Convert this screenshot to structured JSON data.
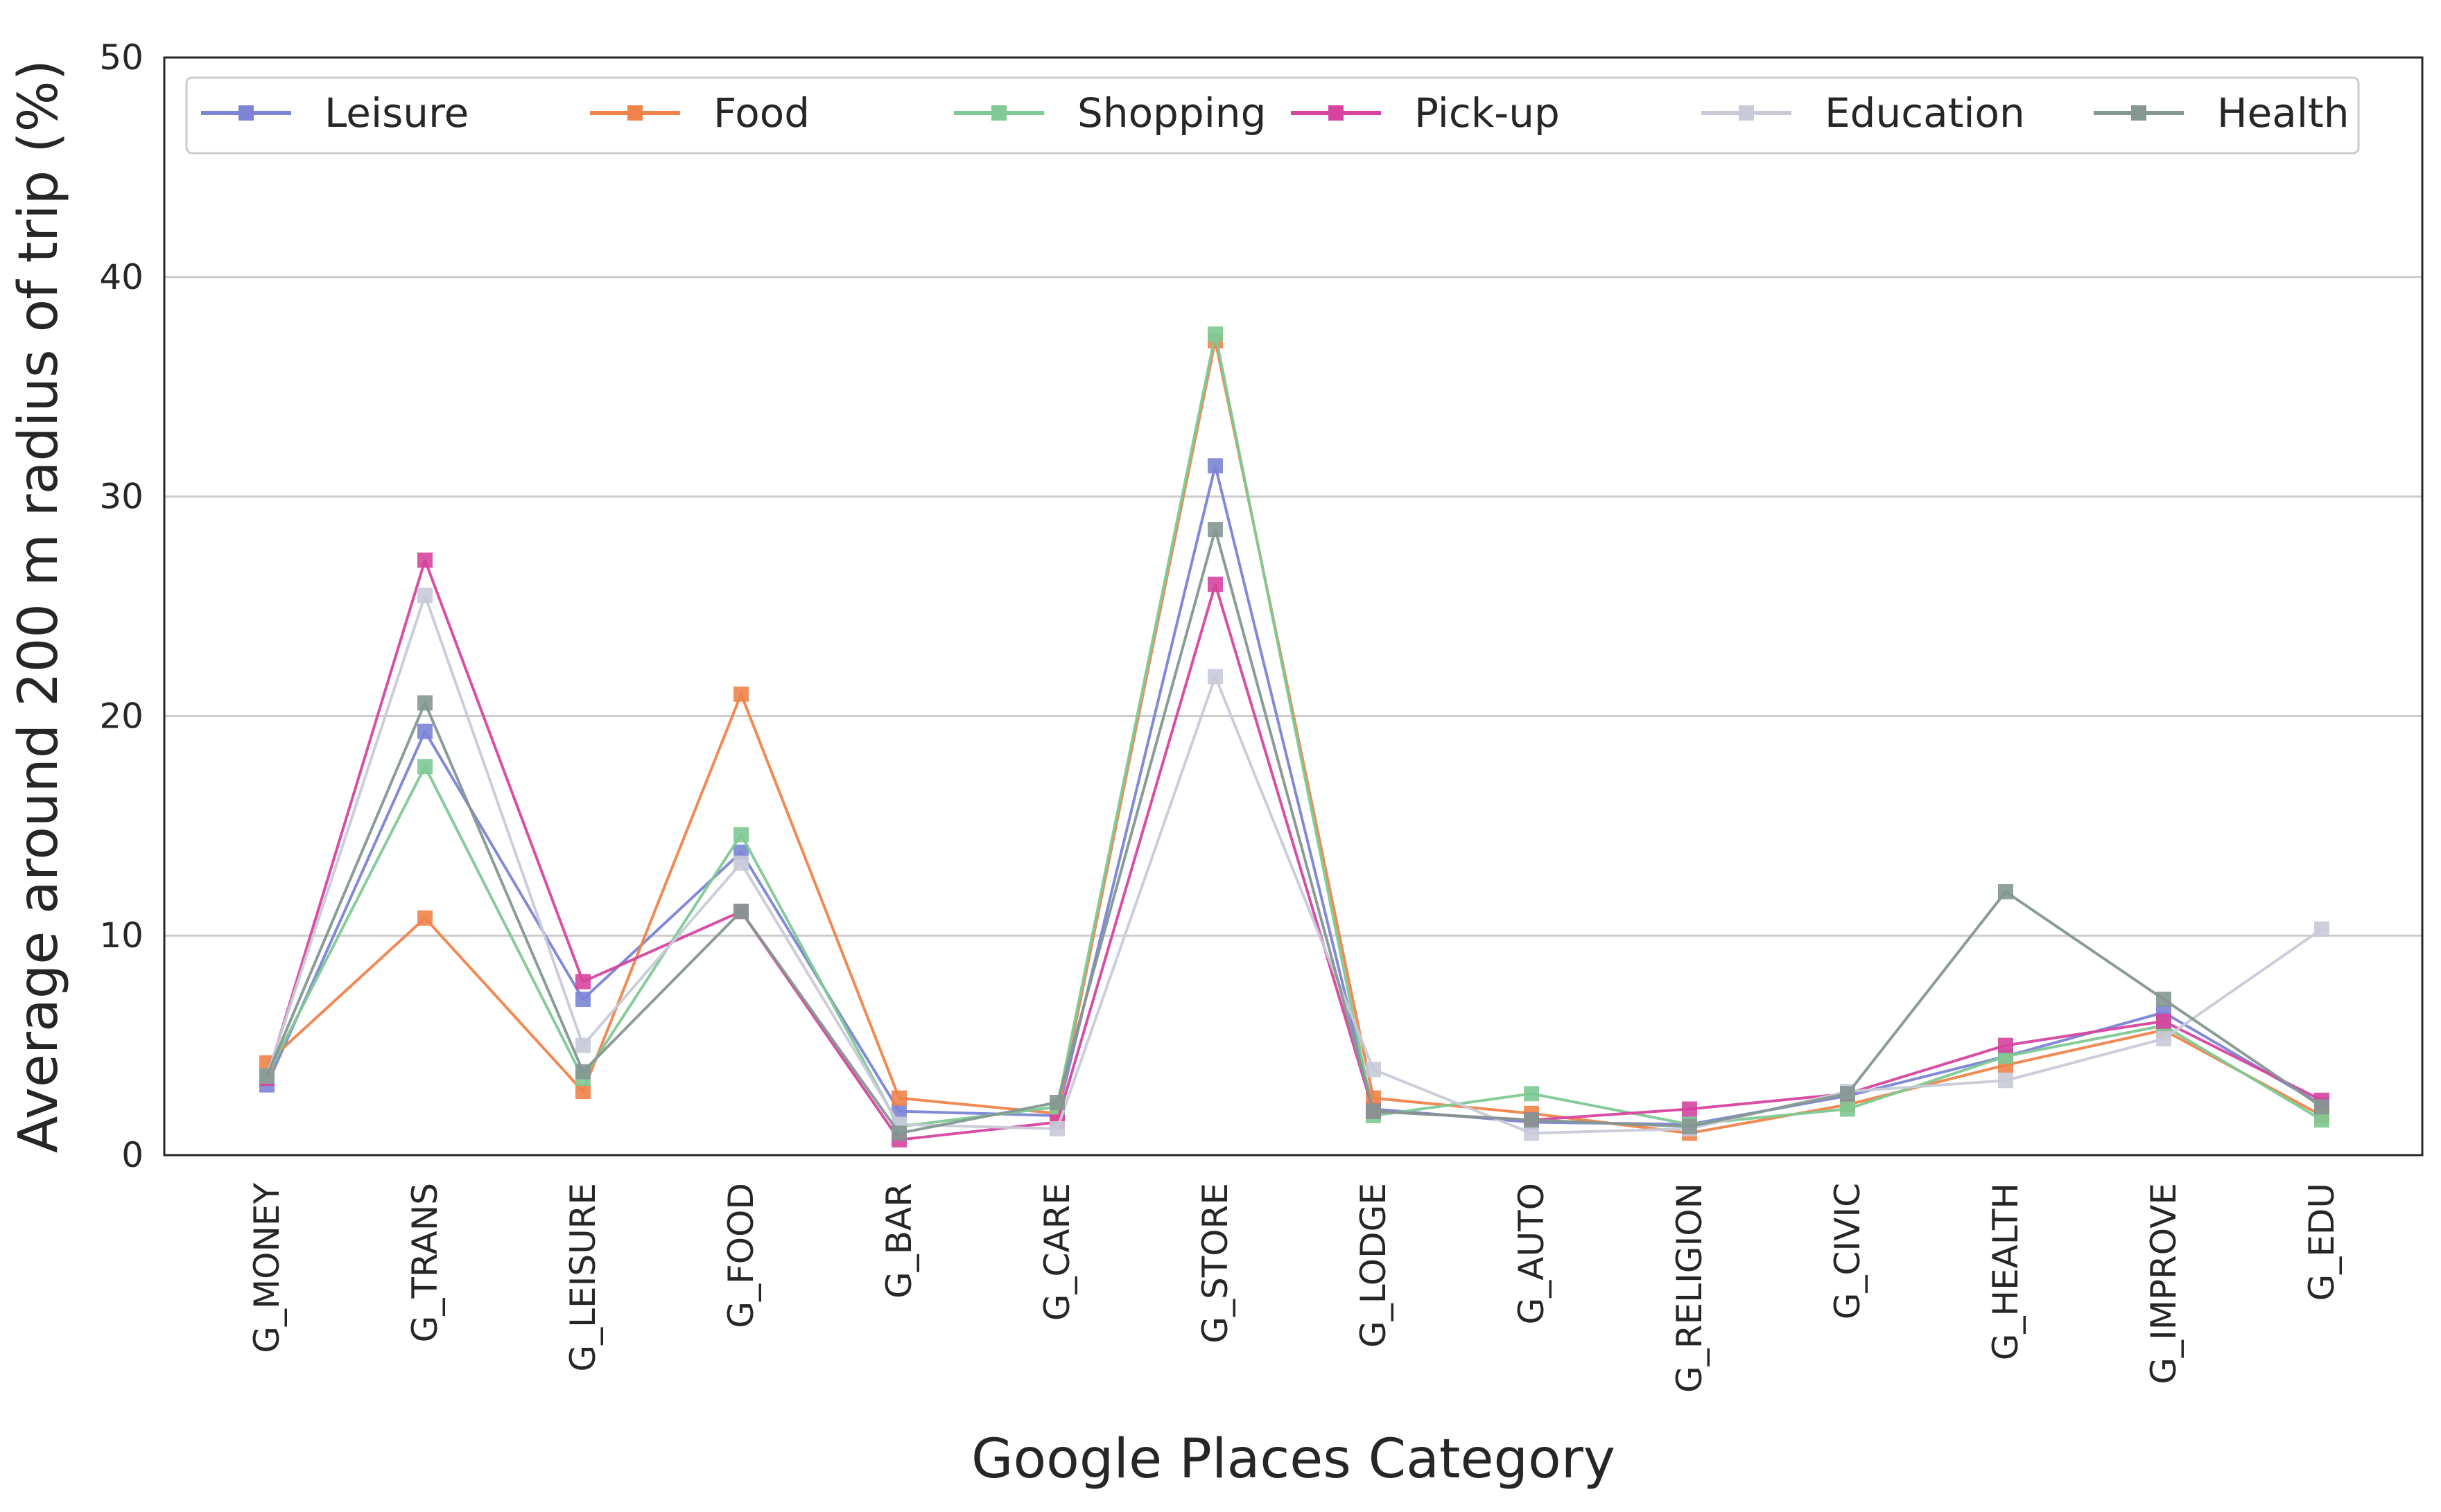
{
  "chart_data": {
    "type": "line",
    "xlabel": "Google Places Category",
    "ylabel": "Average around 200 m radius of trip (%)",
    "ylim": [
      0,
      50
    ],
    "yticks": [
      0,
      10,
      20,
      30,
      40,
      50
    ],
    "grid": "horizontal",
    "legend_position": "top",
    "categories": [
      "G_MONEY",
      "G_TRANS",
      "G_LEISURE",
      "G_FOOD",
      "G_BAR",
      "G_CARE",
      "G_STORE",
      "G_LODGE",
      "G_AUTO",
      "G_RELIGION",
      "G_CIVIC",
      "G_HEALTH",
      "G_IMPROVE",
      "G_EDU"
    ],
    "series": [
      {
        "name": "Leisure",
        "color": "#7b84d6",
        "values": [
          3.2,
          19.3,
          7.1,
          13.8,
          2.0,
          1.8,
          31.4,
          2.1,
          1.5,
          1.4,
          2.7,
          4.5,
          6.5,
          2.3
        ]
      },
      {
        "name": "Food",
        "color": "#f0834a",
        "values": [
          4.2,
          10.8,
          2.9,
          21.0,
          2.6,
          1.9,
          37.1,
          2.6,
          1.9,
          1.0,
          2.3,
          4.1,
          5.7,
          1.8
        ]
      },
      {
        "name": "Shopping",
        "color": "#7ec994",
        "values": [
          3.6,
          17.7,
          3.5,
          14.6,
          1.3,
          2.2,
          37.4,
          1.8,
          2.8,
          1.4,
          2.1,
          4.5,
          5.9,
          1.6
        ]
      },
      {
        "name": "Pick-up",
        "color": "#d6449f",
        "values": [
          3.5,
          27.1,
          7.9,
          11.1,
          0.7,
          1.5,
          26.0,
          2.0,
          1.6,
          2.1,
          2.8,
          5.0,
          6.1,
          2.5
        ]
      },
      {
        "name": "Education",
        "color": "#c8cad8",
        "values": [
          3.6,
          25.5,
          5.0,
          13.3,
          1.4,
          1.2,
          21.8,
          3.9,
          1.0,
          1.2,
          2.9,
          3.4,
          5.3,
          10.3
        ]
      },
      {
        "name": "Health",
        "color": "#849791",
        "values": [
          3.6,
          20.6,
          3.8,
          11.1,
          1.0,
          2.4,
          28.5,
          2.0,
          1.6,
          1.3,
          2.8,
          12.0,
          7.1,
          2.2
        ]
      }
    ]
  }
}
